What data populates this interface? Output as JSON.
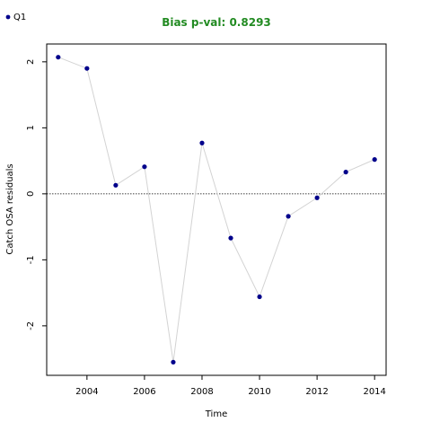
{
  "chart_data": {
    "type": "line",
    "title": "Bias p-val: 0.8293",
    "title_color": "#228b22",
    "xlabel": "Time",
    "ylabel": "Catch OSA residuals",
    "x_ticks": [
      2004,
      2006,
      2008,
      2010,
      2012,
      2014
    ],
    "y_ticks": [
      -2,
      -1,
      0,
      1,
      2
    ],
    "xlim": [
      2002.6,
      2014.4
    ],
    "ylim": [
      -2.75,
      2.27
    ],
    "grid": false,
    "reference_line": 0,
    "legend_position": "top-left",
    "series": [
      {
        "name": "Q1",
        "color": "#00008b",
        "line_color": "#d3d3d3",
        "x": [
          2003,
          2004,
          2005,
          2006,
          2007,
          2008,
          2009,
          2010,
          2011,
          2012,
          2013,
          2014
        ],
        "y": [
          2.07,
          1.9,
          0.13,
          0.41,
          -2.55,
          0.77,
          -0.67,
          -1.56,
          -0.34,
          -0.06,
          0.33,
          0.52
        ]
      }
    ]
  }
}
